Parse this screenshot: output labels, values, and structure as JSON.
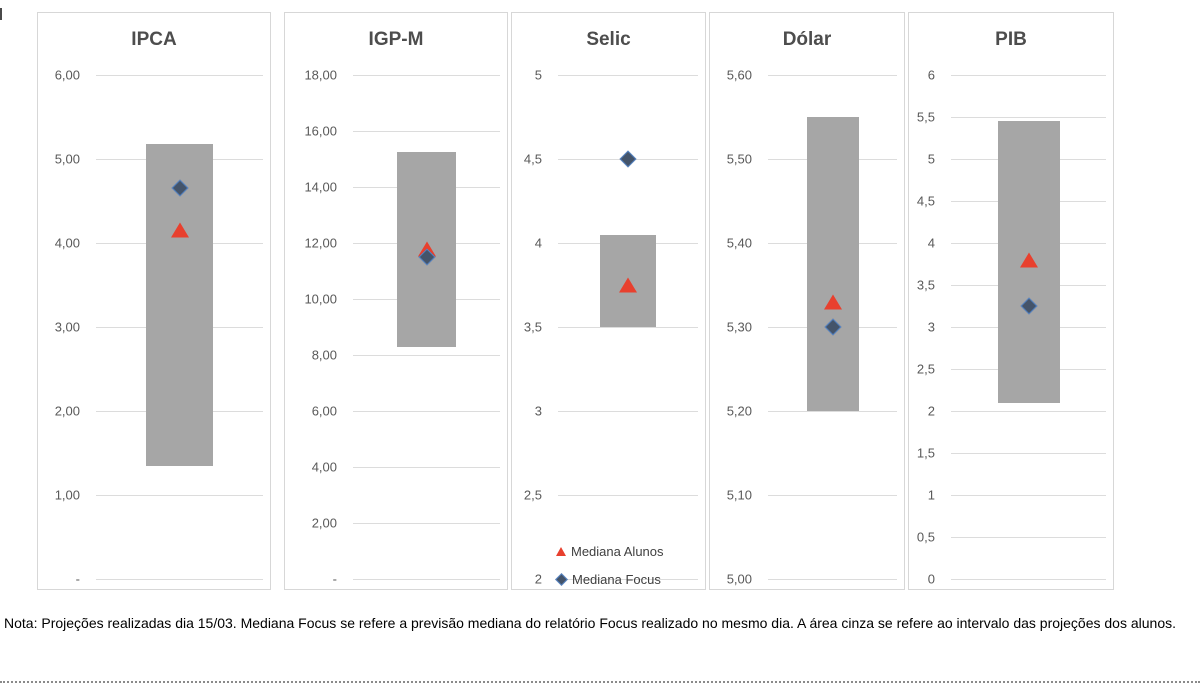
{
  "note": {
    "text": "Nota: Projeções realizadas dia 15/03. Mediana Focus se refere a previsão mediana do relatório Focus realizado no mesmo dia. A área cinza se refere ao intervalo das projeções dos alunos."
  },
  "legend": {
    "alunos": "Mediana Alunos",
    "focus": "Mediana Focus"
  },
  "colors": {
    "range_bar": "#a6a6a6",
    "mediana_alunos": "#e8402e",
    "mediana_focus_fill": "#44546a",
    "mediana_focus_edge": "#5585c6",
    "gridline": "#dcdcdc",
    "tick_text": "#595959",
    "title_text": "#4d4d4d"
  },
  "chart_data": [
    {
      "type": "bar",
      "title": "IPCA",
      "axis": {
        "max": 6,
        "min": 0,
        "step": 1,
        "tick_labels": [
          "6,00",
          "5,00",
          "4,00",
          "3,00",
          "2,00",
          "1,00",
          "-"
        ]
      },
      "bar_range": [
        1.35,
        5.18
      ],
      "mediana_alunos": 4.15,
      "mediana_focus": 4.65
    },
    {
      "type": "bar",
      "title": "IGP-M",
      "axis": {
        "max": 18,
        "min": 0,
        "step": 2,
        "tick_labels": [
          "18,00",
          "16,00",
          "14,00",
          "12,00",
          "10,00",
          "8,00",
          "6,00",
          "4,00",
          "2,00",
          "-"
        ]
      },
      "bar_range": [
        8.3,
        15.25
      ],
      "mediana_alunos": 11.8,
      "mediana_focus": 11.5
    },
    {
      "type": "bar",
      "title": "Selic",
      "axis": {
        "max": 5,
        "min": 2,
        "step": 0.5,
        "tick_labels": [
          "5",
          "4,5",
          "4",
          "3,5",
          "3",
          "2,5",
          "2"
        ]
      },
      "bar_range": [
        3.5,
        4.05
      ],
      "mediana_alunos": 3.75,
      "mediana_focus": 4.5
    },
    {
      "type": "bar",
      "title": "Dólar",
      "axis": {
        "max": 5.6,
        "min": 5.0,
        "step": 0.1,
        "tick_labels": [
          "5,60",
          "5,50",
          "5,40",
          "5,30",
          "5,20",
          "5,10",
          "5,00"
        ]
      },
      "bar_range": [
        5.2,
        5.55
      ],
      "mediana_alunos": 5.33,
      "mediana_focus": 5.3
    },
    {
      "type": "bar",
      "title": "PIB",
      "axis": {
        "max": 6,
        "min": 0,
        "step": 0.5,
        "tick_labels": [
          "6",
          "5,5",
          "5",
          "4,5",
          "4",
          "3,5",
          "3",
          "2,5",
          "2",
          "1,5",
          "1",
          "0,5",
          "0"
        ]
      },
      "bar_range": [
        2.1,
        5.45
      ],
      "mediana_alunos": 3.8,
      "mediana_focus": 3.25
    }
  ]
}
